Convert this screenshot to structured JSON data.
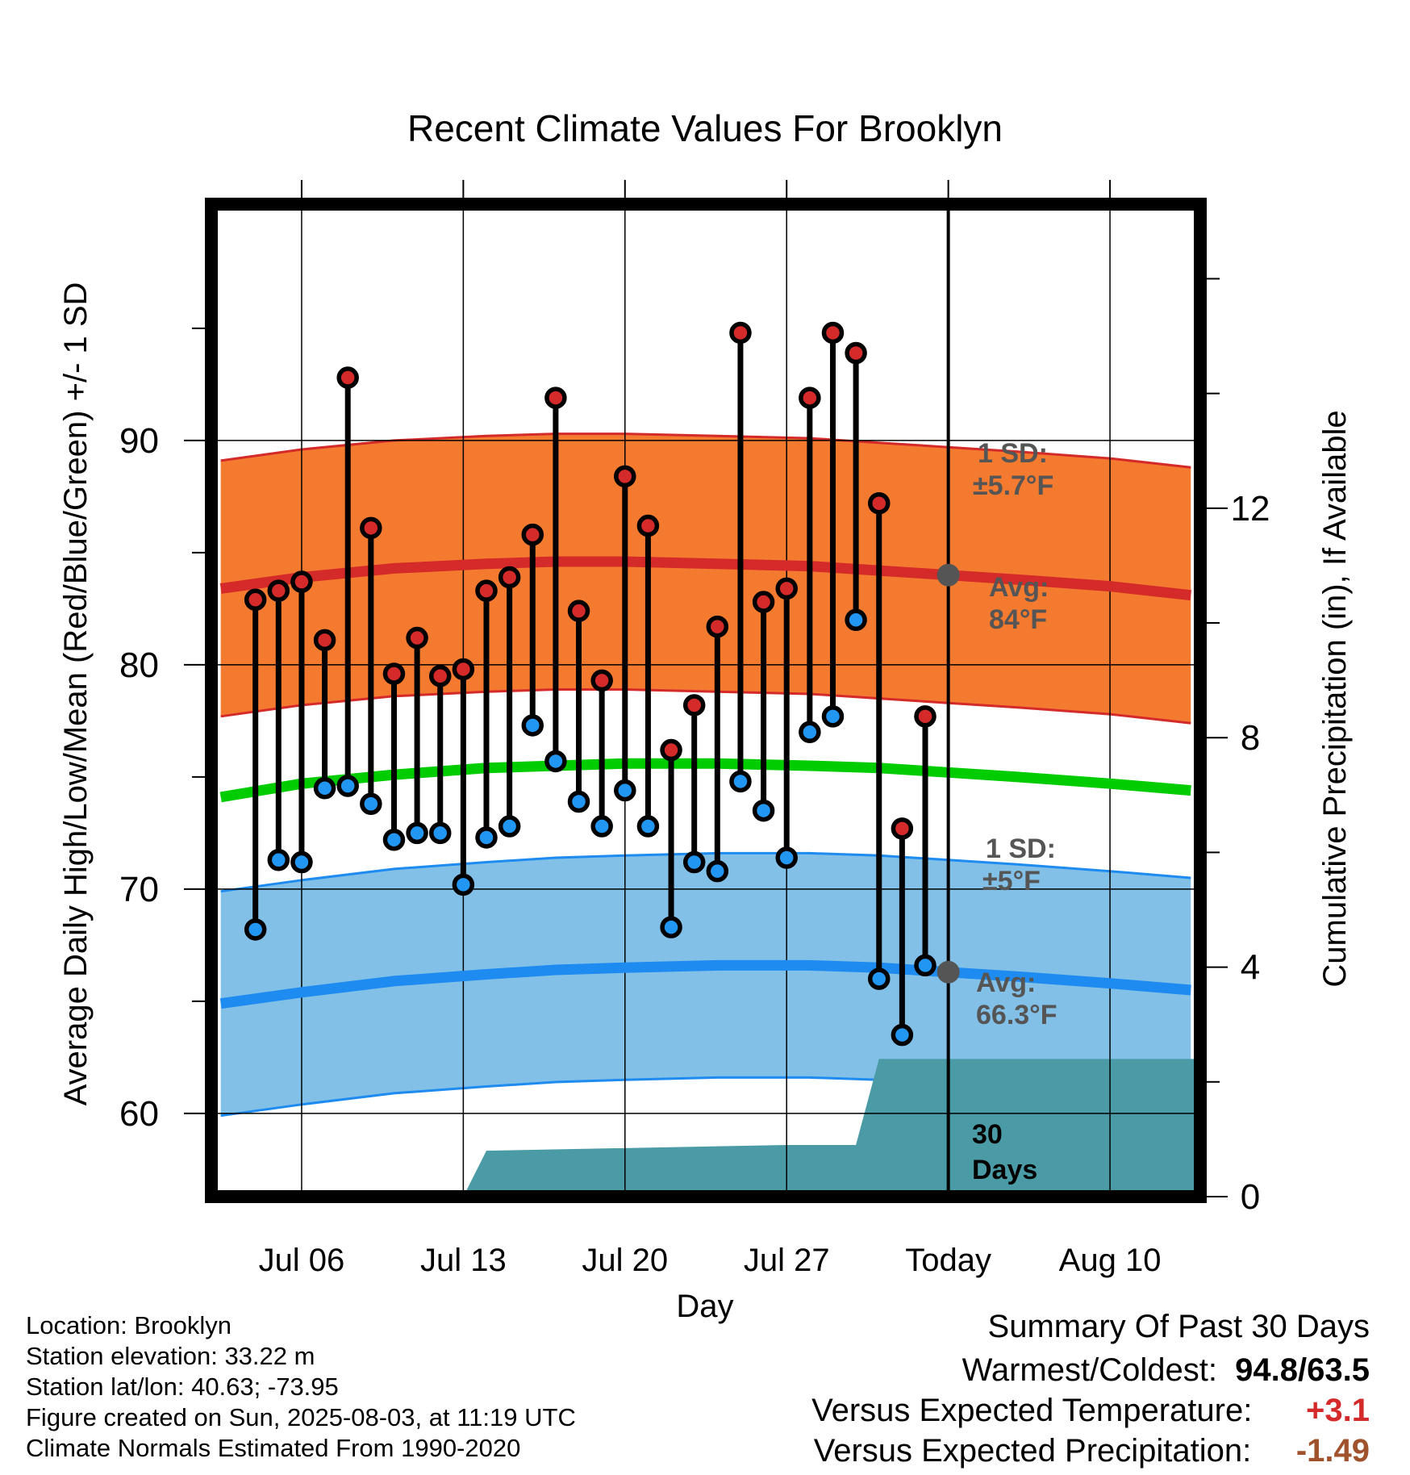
{
  "chart_data": {
    "type": "line",
    "title": "Recent Climate Values For Brooklyn",
    "xlabel": "Day",
    "ylabel": "Average Daily High/Low/Mean (Red/Blue/Green) +/- 1 SD",
    "y2label": "Cumulative Precipitation (in), If Available",
    "ylim": [
      55.5,
      99.5
    ],
    "y2lim": [
      0,
      17.3
    ],
    "x_range_days": [
      -31.7,
      10.7
    ],
    "x_reference": "Today (2025-08-03)",
    "xticks": [
      {
        "day": -28,
        "label": "Jul 06"
      },
      {
        "day": -21,
        "label": "Jul 13"
      },
      {
        "day": -14,
        "label": "Jul 20"
      },
      {
        "day": -7,
        "label": "Jul 27"
      },
      {
        "day": 0,
        "label": "Today"
      },
      {
        "day": 7,
        "label": "Aug 10"
      }
    ],
    "yticks": [
      60,
      70,
      80,
      90
    ],
    "y2ticks": [
      0,
      4,
      8,
      12
    ],
    "grid": true,
    "daily": {
      "days": [
        -30,
        -29,
        -28,
        -27,
        -26,
        -25,
        -24,
        -23,
        -22,
        -21,
        -20,
        -19,
        -18,
        -17,
        -16,
        -15,
        -14,
        -13,
        -12,
        -11,
        -10,
        -9,
        -8,
        -7,
        -6,
        -5,
        -4,
        -3,
        -2,
        -1
      ],
      "high": [
        82.9,
        83.3,
        83.7,
        81.1,
        92.8,
        86.1,
        79.6,
        81.2,
        79.5,
        79.8,
        83.3,
        83.9,
        85.8,
        91.9,
        82.4,
        79.3,
        88.4,
        86.2,
        76.2,
        78.2,
        81.7,
        94.8,
        82.8,
        83.4,
        91.9,
        94.8,
        93.9,
        87.2,
        72.7,
        77.7
      ],
      "low": [
        68.2,
        71.3,
        71.2,
        74.5,
        74.6,
        73.8,
        72.2,
        72.5,
        72.5,
        70.2,
        72.3,
        72.8,
        77.3,
        75.7,
        73.9,
        72.8,
        74.4,
        72.8,
        68.3,
        71.2,
        70.8,
        74.8,
        73.5,
        71.4,
        77.0,
        77.7,
        82.0,
        66.0,
        63.5,
        66.6
      ]
    },
    "normals": {
      "days": [
        -31.5,
        -28,
        -24,
        -20,
        -17,
        -14,
        -10,
        -6,
        -3,
        0,
        3,
        7,
        10.5
      ],
      "avg_high": [
        83.4,
        83.9,
        84.3,
        84.5,
        84.6,
        84.6,
        84.5,
        84.4,
        84.2,
        84.0,
        83.8,
        83.5,
        83.1
      ],
      "avg_low": [
        64.9,
        65.4,
        65.9,
        66.2,
        66.4,
        66.5,
        66.6,
        66.6,
        66.5,
        66.3,
        66.1,
        65.8,
        65.5
      ],
      "avg_mean": [
        74.1,
        74.7,
        75.1,
        75.4,
        75.5,
        75.6,
        75.6,
        75.5,
        75.4,
        75.2,
        75.0,
        74.7,
        74.4
      ],
      "high_sd": 5.7,
      "low_sd": 5.0
    },
    "precipitation": {
      "days": [
        -21,
        -20,
        -7,
        -4,
        -3,
        10.7
      ],
      "cumulative_in": [
        0,
        0.8,
        0.9,
        0.9,
        2.4,
        2.4
      ]
    },
    "annotations": {
      "high_sd_label": "1 SD:",
      "high_sd_value": "±5.7°F",
      "high_avg_label": "Avg:",
      "high_avg_value": "84°F",
      "low_sd_label": "1 SD:",
      "low_sd_value": "±5°F",
      "low_avg_label": "Avg:",
      "low_avg_value": "66.3°F",
      "precip_window_1": "30",
      "precip_window_2": "Days"
    },
    "colors": {
      "high_band": "#f47a2f",
      "high_line": "#d42a2a",
      "low_band": "#82c0e8",
      "low_line": "#1e8bf0",
      "mean_line": "#00cc00",
      "precip": "#4a9ba6",
      "high_dot": "#d42a2a",
      "low_dot": "#2196f3",
      "today_dot": "#555555"
    }
  },
  "meta": {
    "location": "Location: Brooklyn",
    "elevation": "Station elevation: 33.22 m",
    "latlon": "Station lat/lon: 40.63; -73.95",
    "created": "Figure created on Sun, 2025-08-03, at 11:19 UTC",
    "normals": "Climate Normals Estimated From 1990-2020"
  },
  "summary": {
    "title": "Summary Of Past 30 Days",
    "warm_cold_label": "Warmest/Coldest:",
    "warm_cold_value": "94.8/63.5",
    "temp_label": "Versus Expected Temperature:",
    "temp_value": "+3.1",
    "temp_color": "#d42a2a",
    "precip_label": "Versus Expected Precipitation:",
    "precip_value": "-1.49",
    "precip_color": "#a0522d"
  }
}
